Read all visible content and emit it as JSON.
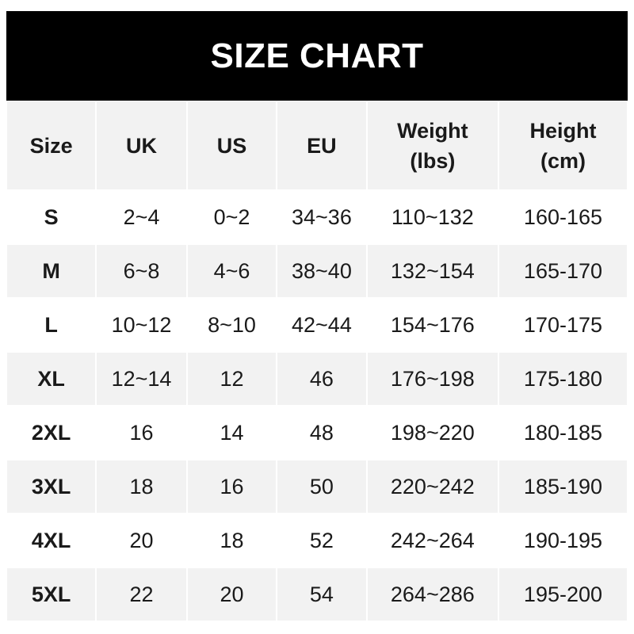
{
  "title": "SIZE CHART",
  "headers": [
    {
      "line1": "Size",
      "line2": ""
    },
    {
      "line1": "UK",
      "line2": ""
    },
    {
      "line1": "US",
      "line2": ""
    },
    {
      "line1": "EU",
      "line2": ""
    },
    {
      "line1": "Weight",
      "line2": "(lbs)"
    },
    {
      "line1": "Height",
      "line2": "(cm)"
    }
  ],
  "rows": [
    [
      "S",
      "2~4",
      "0~2",
      "34~36",
      "110~132",
      "160-165"
    ],
    [
      "M",
      "6~8",
      "4~6",
      "38~40",
      "132~154",
      "165-170"
    ],
    [
      "L",
      "10~12",
      "8~10",
      "42~44",
      "154~176",
      "170-175"
    ],
    [
      "XL",
      "12~14",
      "12",
      "46",
      "176~198",
      "175-180"
    ],
    [
      "2XL",
      "16",
      "14",
      "48",
      "198~220",
      "180-185"
    ],
    [
      "3XL",
      "18",
      "16",
      "50",
      "220~242",
      "185-190"
    ],
    [
      "4XL",
      "20",
      "18",
      "52",
      "242~264",
      "190-195"
    ],
    [
      "5XL",
      "22",
      "20",
      "54",
      "264~286",
      "195-200"
    ]
  ],
  "colors": {
    "header_bg": "#000000",
    "stripe": "#f2f2f2"
  }
}
